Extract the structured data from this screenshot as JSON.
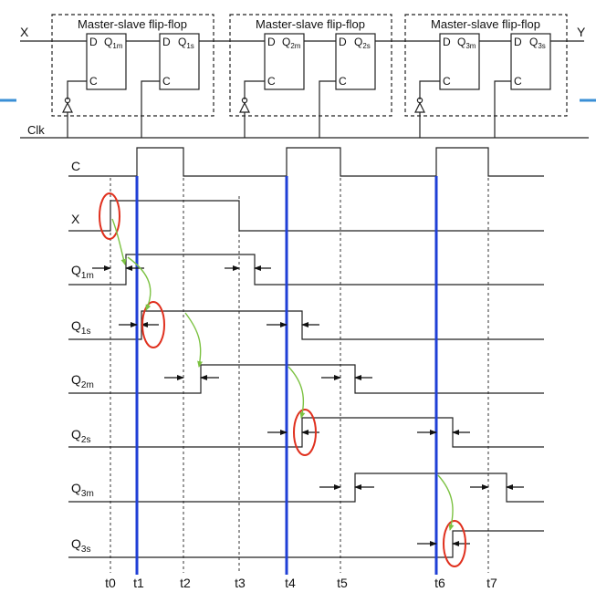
{
  "circuit": {
    "input_label": "X",
    "output_label": "Y",
    "clock_label": "Clk",
    "flipflops": [
      {
        "title": "Master-slave flip-flop",
        "master_out": "Q",
        "master_sub": "1m",
        "slave_out": "Q",
        "slave_sub": "1s"
      },
      {
        "title": "Master-slave flip-flop",
        "master_out": "Q",
        "master_sub": "2m",
        "slave_out": "Q",
        "slave_sub": "2s"
      },
      {
        "title": "Master-slave flip-flop",
        "master_out": "Q",
        "master_sub": "3m",
        "slave_out": "Q",
        "slave_sub": "3s"
      }
    ],
    "pin_d": "D",
    "pin_c": "C"
  },
  "timing": {
    "signals": [
      {
        "name": "C",
        "sub": ""
      },
      {
        "name": "X",
        "sub": ""
      },
      {
        "name": "Q",
        "sub": "1m"
      },
      {
        "name": "Q",
        "sub": "1s"
      },
      {
        "name": "Q",
        "sub": "2m"
      },
      {
        "name": "Q",
        "sub": "2s"
      },
      {
        "name": "Q",
        "sub": "3m"
      },
      {
        "name": "Q",
        "sub": "3s"
      }
    ],
    "time_labels": [
      "t0",
      "t1",
      "t2",
      "t3",
      "t4",
      "t5",
      "t6",
      "t7"
    ]
  },
  "colors": {
    "wire": "#222222",
    "clock_edge": "#1f3fd6",
    "highlight": "#e0301e",
    "causal_arrow": "#7cc242",
    "box_dash": "#333333",
    "accent_line": "#3a8fd6"
  }
}
